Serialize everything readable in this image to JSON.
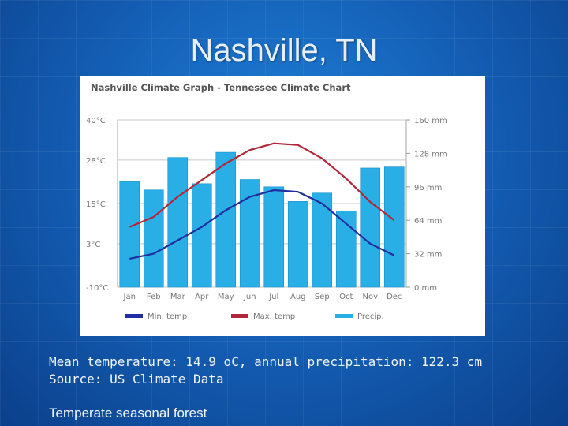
{
  "slide": {
    "title": "Nashville, TN",
    "caption_line1": "Mean temperature: 14.9 oC, annual precipitation: 122.3 cm",
    "caption_line2": "Source: US Climate Data",
    "caption_line3": "Temperate seasonal forest"
  },
  "chart_data": {
    "type": "bar",
    "title": "Nashville Climate Graph - Tennessee Climate Chart",
    "categories": [
      "Jan",
      "Feb",
      "Mar",
      "Apr",
      "May",
      "Jun",
      "Jul",
      "Aug",
      "Sep",
      "Oct",
      "Nov",
      "Dec"
    ],
    "left_axis": {
      "unit": "°C",
      "ylim": [
        -10,
        40
      ],
      "ticks": [
        "40°C",
        "28°C",
        "15°C",
        "3°C",
        "-10°C"
      ],
      "tick_values": [
        40,
        28,
        15,
        3,
        -10
      ]
    },
    "right_axis": {
      "unit": "mm",
      "ylim": [
        0,
        160
      ],
      "ticks": [
        "160 mm",
        "128 mm",
        "96 mm",
        "64 mm",
        "32 mm",
        "0 mm"
      ],
      "tick_values": [
        160,
        128,
        96,
        64,
        32,
        0
      ]
    },
    "series": [
      {
        "name": "Min. temp",
        "type": "line",
        "axis": "left",
        "color": "#1f2f9e",
        "values": [
          -1.5,
          0,
          4,
          8,
          13,
          17,
          19,
          18.5,
          15,
          9,
          3,
          -0.5
        ]
      },
      {
        "name": "Max. temp",
        "type": "line",
        "axis": "left",
        "color": "#b0283a",
        "values": [
          8,
          11,
          17,
          22,
          27,
          31,
          33,
          32.5,
          28.5,
          22.5,
          15.5,
          10
        ]
      },
      {
        "name": "Precip.",
        "type": "bar",
        "axis": "right",
        "color": "#2aaee6",
        "values": [
          101,
          93,
          124,
          99,
          129,
          103,
          96,
          82,
          90,
          73,
          114,
          115
        ]
      }
    ],
    "legend_position": "bottom",
    "grid": true
  }
}
